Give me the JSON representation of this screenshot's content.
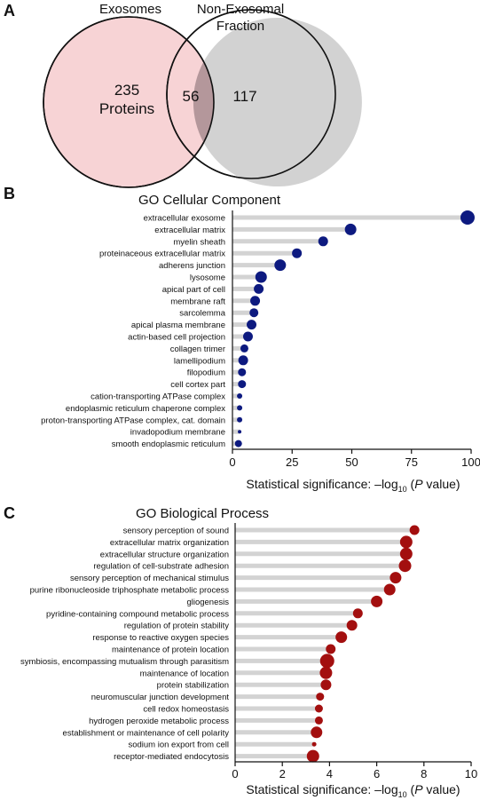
{
  "panels": {
    "a": "A",
    "b": "B",
    "c": "C"
  },
  "venn": {
    "left_label": "Exosomes",
    "right_label_line1": "Non-Exosomal",
    "right_label_line2": "Fraction",
    "left_count": "235",
    "left_unit": "Proteins",
    "overlap_count": "56",
    "right_count": "117",
    "left_color": "#f7d3d5",
    "right_color": "#d2d2d2",
    "overlap_color": "#b4979b"
  },
  "chart_data": [
    {
      "type": "lollipop",
      "title": "GO Cellular Component",
      "xlabel_prefix": "Statistical significance: –log",
      "xlabel_sub": "10",
      "xlabel_open": " (",
      "xlabel_italic": "P",
      "xlabel_suffix": " value)",
      "xlim": [
        0,
        100
      ],
      "xticks": [
        "0",
        "25",
        "50",
        "75",
        "100"
      ],
      "color": "#0d1a80",
      "categories": [
        "extracellular exosome",
        "extracellular matrix",
        "myelin sheath",
        "proteinaceous extracellular matrix",
        "adherens junction",
        "lysosome",
        "apical part of cell",
        "membrane raft",
        "sarcolemma",
        "apical plasma membrane",
        "actin-based cell projection",
        "collagen trimer",
        "lamellipodium",
        "filopodium",
        "cell cortex part",
        "cation-transporting ATPase complex",
        "endoplasmic reticulum chaperone complex",
        "proton-transporting ATPase complex, cat. domain",
        "invadopodium membrane",
        "smooth endoplasmic reticulum"
      ],
      "values": [
        98.5,
        49.5,
        38,
        27,
        20,
        12,
        11,
        9.5,
        9,
        8,
        6.5,
        5,
        4.5,
        4,
        4,
        3,
        3,
        3,
        3,
        2.5
      ],
      "dot_sizes": [
        8,
        6.5,
        5.5,
        5.5,
        6.5,
        6.5,
        5.5,
        5.5,
        5,
        5.5,
        5.5,
        4.5,
        5.5,
        4.5,
        4.5,
        3,
        3,
        3,
        2,
        4
      ]
    },
    {
      "type": "lollipop",
      "title": "GO Biological Process",
      "xlabel_prefix": "Statistical significance: –log",
      "xlabel_sub": "10",
      "xlabel_open": " (",
      "xlabel_italic": "P",
      "xlabel_suffix": " value)",
      "xlim": [
        0,
        10
      ],
      "xticks": [
        "0",
        "2",
        "4",
        "6",
        "8",
        "10"
      ],
      "color": "#a30f0f",
      "categories": [
        "sensory perception of sound",
        "extracellular matrix organization",
        "extracellular structure organization",
        "regulation of cell-substrate adhesion",
        "sensory perception of mechanical stimulus",
        "purine ribonucleoside triphosphate metabolic process",
        "gliogenesis",
        "pyridine-containing compound metabolic process",
        "regulation of protein stability",
        "response to reactive oxygen species",
        "maintenance of protein location",
        "symbiosis, encompassing mutualism through parasitism",
        "maintenance of location",
        "protein stabilization",
        "neuromuscular junction development",
        "cell redox homeostasis",
        "hydrogen peroxide metabolic process",
        "establishment or maintenance of cell polarity",
        "sodium ion export from cell",
        "receptor-mediated endocytosis"
      ],
      "values": [
        7.6,
        7.25,
        7.25,
        7.2,
        6.8,
        6.55,
        6.0,
        5.2,
        4.95,
        4.5,
        4.05,
        3.9,
        3.85,
        3.85,
        3.6,
        3.55,
        3.55,
        3.45,
        3.35,
        3.3
      ],
      "dot_sizes": [
        5.5,
        7,
        7,
        7,
        6.5,
        6.5,
        6.5,
        5.5,
        6,
        6.5,
        5.5,
        8,
        7,
        6,
        4.5,
        4.5,
        4.5,
        6.5,
        2.5,
        7
      ]
    }
  ]
}
